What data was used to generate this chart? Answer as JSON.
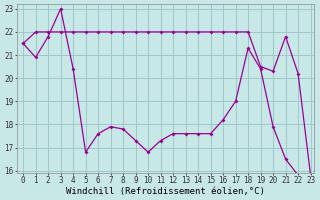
{
  "line1_x": [
    0,
    1,
    2,
    3,
    4,
    5,
    6,
    7,
    8,
    9,
    10,
    11,
    12,
    13,
    14,
    15,
    16,
    17,
    18,
    19,
    20,
    21,
    22,
    23
  ],
  "line1_y": [
    21.5,
    22.0,
    22.0,
    22.0,
    22.0,
    22.0,
    22.0,
    22.0,
    22.0,
    22.0,
    22.0,
    22.0,
    22.0,
    22.0,
    22.0,
    22.0,
    22.0,
    22.0,
    22.0,
    20.5,
    20.3,
    21.8,
    20.2,
    15.8
  ],
  "line2_x": [
    0,
    1,
    2,
    3,
    4,
    5,
    6,
    7,
    8,
    9,
    10,
    11,
    12,
    13,
    14,
    15,
    16,
    17,
    18,
    19,
    20,
    21,
    22,
    23
  ],
  "line2_y": [
    21.5,
    20.9,
    21.8,
    23.0,
    20.4,
    16.8,
    17.6,
    17.9,
    17.8,
    17.3,
    16.8,
    17.3,
    17.6,
    17.6,
    17.6,
    17.6,
    18.2,
    19.0,
    21.3,
    20.4,
    17.9,
    16.5,
    15.8,
    15.7
  ],
  "bg_color": "#c8e8e8",
  "grid_color": "#a0c8c8",
  "line_color": "#990099",
  "xlabel": "Windchill (Refroidissement éolien,°C)",
  "ylim": [
    15.9,
    23.2
  ],
  "xlim": [
    -0.5,
    23.3
  ],
  "yticks": [
    16,
    17,
    18,
    19,
    20,
    21,
    22,
    23
  ],
  "xticks": [
    0,
    1,
    2,
    3,
    4,
    5,
    6,
    7,
    8,
    9,
    10,
    11,
    12,
    13,
    14,
    15,
    16,
    17,
    18,
    19,
    20,
    21,
    22,
    23
  ],
  "tick_fontsize": 5.5,
  "xlabel_fontsize": 6.5
}
